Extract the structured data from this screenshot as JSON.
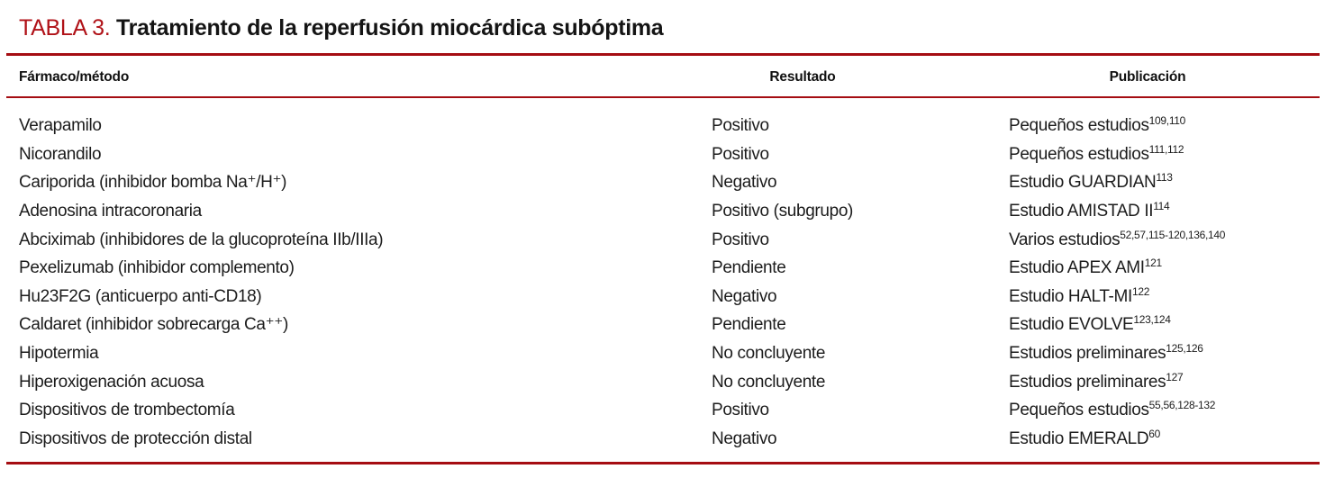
{
  "colors": {
    "accent_red_title": "#B01218",
    "rule_red": "#A50D12",
    "text": "#1C1C1C"
  },
  "title": {
    "label": "TABLA 3.",
    "text": "Tratamiento de la reperfusión miocárdica subóptima"
  },
  "columns": {
    "drug": "Fármaco/método",
    "result": "Resultado",
    "publication": "Publicación"
  },
  "rows": [
    {
      "drug": "Verapamilo",
      "result": "Positivo",
      "pub": "Pequeños estudios",
      "refs": "109,110"
    },
    {
      "drug": "Nicorandilo",
      "result": "Positivo",
      "pub": "Pequeños estudios",
      "refs": "111,112"
    },
    {
      "drug": "Cariporida (inhibidor bomba Na⁺/H⁺)",
      "result": "Negativo",
      "pub": "Estudio GUARDIAN",
      "refs": "113"
    },
    {
      "drug": "Adenosina intracoronaria",
      "result": "Positivo (subgrupo)",
      "pub": "Estudio AMISTAD II",
      "refs": "114"
    },
    {
      "drug": "Abciximab (inhibidores de la glucoproteína IIb/IIIa)",
      "result": "Positivo",
      "pub": "Varios estudios",
      "refs": "52,57,115-120,136,140"
    },
    {
      "drug": "Pexelizumab (inhibidor complemento)",
      "result": "Pendiente",
      "pub": "Estudio APEX AMI",
      "refs": "121"
    },
    {
      "drug": "Hu23F2G (anticuerpo anti-CD18)",
      "result": "Negativo",
      "pub": "Estudio HALT-MI",
      "refs": "122"
    },
    {
      "drug": "Caldaret (inhibidor sobrecarga Ca⁺⁺)",
      "result": "Pendiente",
      "pub": "Estudio EVOLVE",
      "refs": "123,124"
    },
    {
      "drug": "Hipotermia",
      "result": "No concluyente",
      "pub": "Estudios preliminares",
      "refs": "125,126"
    },
    {
      "drug": "Hiperoxigenación acuosa",
      "result": "No concluyente",
      "pub": "Estudios preliminares",
      "refs": "127"
    },
    {
      "drug": "Dispositivos de trombectomía",
      "result": "Positivo",
      "pub": "Pequeños estudios",
      "refs": "55,56,128-132"
    },
    {
      "drug": "Dispositivos de protección distal",
      "result": "Negativo",
      "pub": "Estudio EMERALD",
      "refs": "60"
    }
  ]
}
